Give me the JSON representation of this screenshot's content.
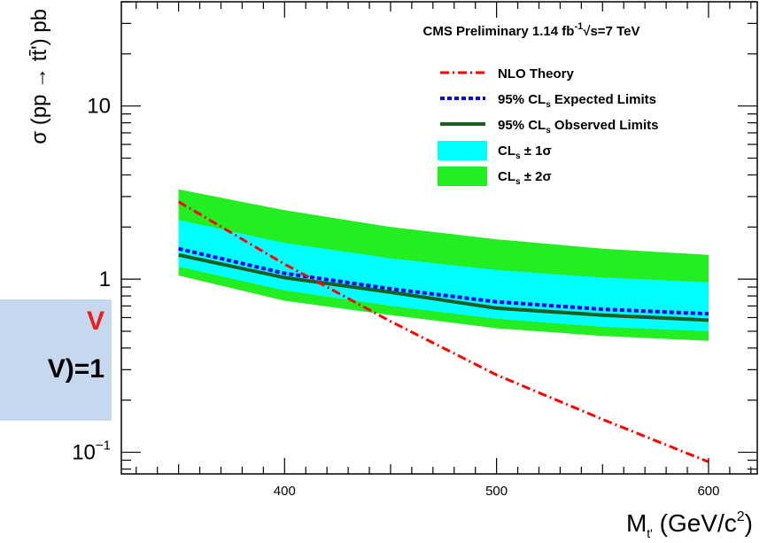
{
  "callout": {
    "line1": "V",
    "line2": "V)=1",
    "line1_color": "#ee1c1c",
    "line2_color": "#000000",
    "background": "#c5d8ee"
  },
  "chart_data": {
    "type": "line",
    "title": "CMS Preliminary 1.14 fb",
    "title_sup": "-1",
    "title_tail": "√s=7 TeV",
    "xlabel": "M",
    "xlabel_sub": "t'",
    "xlabel_units": " (GeV/c",
    "xlabel_units_sup": "2",
    "xlabel_units_tail": ")",
    "ylabel": "σ (pp → tt̄') pb",
    "xlim": [
      323,
      623
    ],
    "ylim": [
      0.075,
      40
    ],
    "yscale": "log",
    "x_ticks": [
      {
        "value": 400,
        "label": "400"
      },
      {
        "value": 500,
        "label": "500"
      },
      {
        "value": 600,
        "label": "600"
      }
    ],
    "y_ticks": [
      {
        "value": 10,
        "label": "10",
        "sup": ""
      },
      {
        "value": 1,
        "label": "1",
        "sup": ""
      },
      {
        "value": 0.1,
        "label": "10",
        "sup": "−1"
      }
    ],
    "legend_position": "top-right",
    "legend": [
      {
        "label": "NLO Theory",
        "style": "dashdot",
        "color": "#ff0000"
      },
      {
        "label": "95% CL",
        "sub": "s",
        "tail": " Expected Limits",
        "style": "dotted",
        "color": "#0000ff"
      },
      {
        "label": "95% CL",
        "sub": "s",
        "tail": " Observed Limits",
        "style": "solid",
        "color": "#1b5e20"
      },
      {
        "label": "CL",
        "sub": "s",
        "tail": " ± 1σ",
        "style": "box",
        "color": "#00ffff"
      },
      {
        "label": "CL",
        "sub": "s",
        "tail": " ± 2σ",
        "style": "box",
        "color": "#22ee22"
      }
    ],
    "x": [
      350,
      400,
      450,
      500,
      550,
      600
    ],
    "series": [
      {
        "name": "NLO Theory",
        "color": "#ff0000",
        "style": "dashdot",
        "values": [
          2.8,
          1.22,
          0.57,
          0.28,
          0.155,
          0.088
        ]
      },
      {
        "name": "95% CLs Expected Limits",
        "color": "#0000ff",
        "style": "dotted",
        "values": [
          1.5,
          1.08,
          0.88,
          0.74,
          0.67,
          0.63
        ]
      },
      {
        "name": "95% CLs Observed Limits",
        "color": "#1b5e20",
        "style": "solid",
        "values": [
          1.38,
          1.02,
          0.84,
          0.68,
          0.62,
          0.58
        ]
      }
    ],
    "bands": [
      {
        "name": "CLs ± 2σ",
        "color": "#22ee22",
        "upper": [
          3.3,
          2.5,
          2.0,
          1.7,
          1.5,
          1.38
        ],
        "lower": [
          1.05,
          0.75,
          0.62,
          0.52,
          0.47,
          0.44
        ]
      },
      {
        "name": "CLs ± 1σ",
        "color": "#00ffff",
        "upper": [
          2.2,
          1.62,
          1.32,
          1.13,
          1.02,
          0.96
        ],
        "lower": [
          1.18,
          0.86,
          0.7,
          0.59,
          0.53,
          0.5
        ]
      }
    ]
  }
}
